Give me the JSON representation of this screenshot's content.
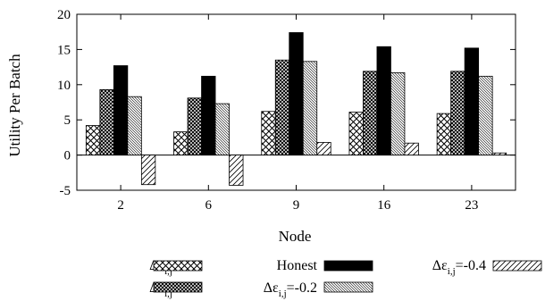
{
  "chart_data": {
    "type": "bar",
    "title": "",
    "xlabel": "Node",
    "ylabel": "Utility Per Batch",
    "categories": [
      "2",
      "6",
      "9",
      "16",
      "23"
    ],
    "ylim": [
      -5,
      20
    ],
    "yticks": [
      -5,
      0,
      5,
      10,
      15,
      20
    ],
    "grid": false,
    "legend_position": "bottom",
    "series": [
      {
        "legend_main": "Δε",
        "legend_sub": "i,j",
        "legend_value": "=0.4",
        "pattern": "crosshatch",
        "values": [
          4.2,
          3.3,
          6.2,
          6.1,
          5.9
        ]
      },
      {
        "legend_main": "Δε",
        "legend_sub": "i,j",
        "legend_value": "=0.2",
        "pattern": "dense-crosshatch",
        "values": [
          9.3,
          8.1,
          13.5,
          11.9,
          11.9
        ]
      },
      {
        "legend_main": "Honest",
        "legend_sub": "",
        "legend_value": "",
        "pattern": "solid",
        "values": [
          12.7,
          11.2,
          17.4,
          15.4,
          15.2
        ]
      },
      {
        "legend_main": "Δε",
        "legend_sub": "i,j",
        "legend_value": "=-0.2",
        "pattern": "diagonal-dense",
        "values": [
          8.3,
          7.3,
          13.3,
          11.7,
          11.2
        ]
      },
      {
        "legend_main": "Δε",
        "legend_sub": "i,j",
        "legend_value": "=-0.4",
        "pattern": "diagonal-sparse",
        "values": [
          -4.2,
          -4.3,
          1.8,
          1.7,
          0.3
        ]
      }
    ]
  }
}
